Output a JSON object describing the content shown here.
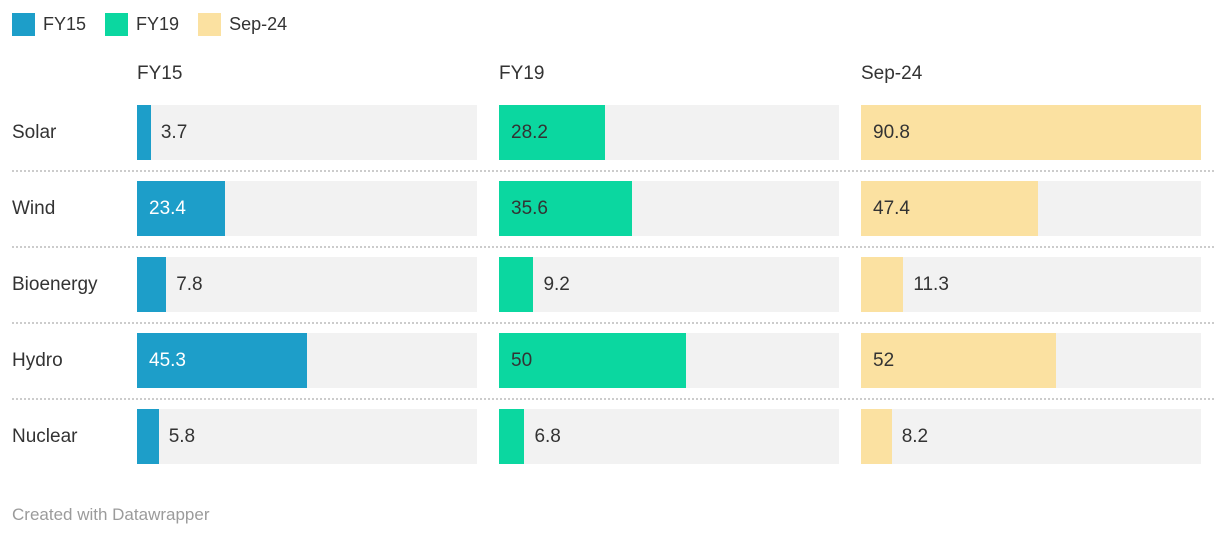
{
  "legend": {
    "items": [
      {
        "label": "FY15",
        "color": "#1D9EC9"
      },
      {
        "label": "FY19",
        "color": "#0BD7A0"
      },
      {
        "label": "Sep-24",
        "color": "#FBE1A1"
      }
    ]
  },
  "columns": {
    "headers": [
      "FY15",
      "FY19",
      "Sep-24"
    ]
  },
  "chart_data": {
    "type": "bar",
    "layout": "small-multiples-horizontal-bars",
    "categories": [
      "Solar",
      "Wind",
      "Bioenergy",
      "Hydro",
      "Nuclear"
    ],
    "series": [
      {
        "name": "FY15",
        "color": "#1D9EC9",
        "label_color_inside": "#FFFFFF",
        "values": [
          3.7,
          23.4,
          7.8,
          45.3,
          5.8
        ],
        "labels": [
          "3.7",
          "23.4",
          "7.8",
          "45.3",
          "5.8"
        ]
      },
      {
        "name": "FY19",
        "color": "#0BD7A0",
        "label_color_inside": "#333333",
        "values": [
          28.2,
          35.6,
          9.2,
          50,
          6.8
        ],
        "labels": [
          "28.2",
          "35.6",
          "9.2",
          "50",
          "6.8"
        ]
      },
      {
        "name": "Sep-24",
        "color": "#FBE1A1",
        "label_color_inside": "#333333",
        "values": [
          90.8,
          47.4,
          11.3,
          52,
          8.2
        ],
        "labels": [
          "90.8",
          "47.4",
          "11.3",
          "52",
          "8.2"
        ]
      }
    ],
    "xmax": 90.8,
    "track_color": "#F2F2F2",
    "value_label_color_outside": "#333333",
    "separator_style": "dotted",
    "legend_position": "top-left",
    "title": "",
    "xlabel": "",
    "ylabel": ""
  },
  "footer": {
    "credit": "Created with Datawrapper"
  }
}
